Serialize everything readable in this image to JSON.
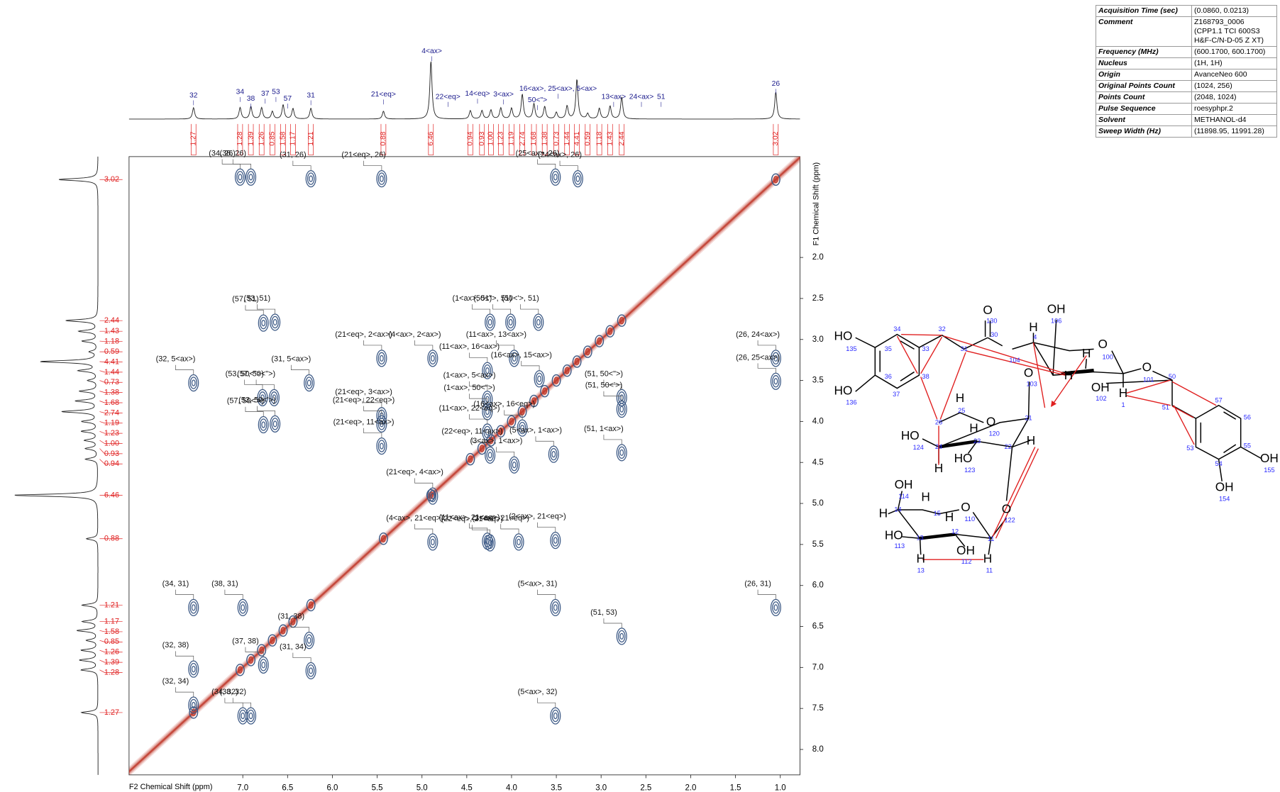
{
  "chart_data": {
    "type": "scatter",
    "x_label": "F2 Chemical Shift (ppm)",
    "y_label": "F1 Chemical Shift (ppm)",
    "xlim": [
      8.27,
      0.78
    ],
    "ylim": [
      0.77,
      8.31
    ],
    "xticks": [
      {
        "value": 7,
        "label": "7.0"
      },
      6.5,
      {
        "value": 6,
        "label": "6.0"
      },
      5.5,
      {
        "value": 5,
        "label": "5.0"
      },
      4.5,
      {
        "value": 4,
        "label": "4.0"
      },
      3.5,
      {
        "value": 3,
        "label": "3.0"
      },
      2.5,
      {
        "value": 2,
        "label": "2.0"
      },
      1.5,
      {
        "value": 1,
        "label": "1.0"
      }
    ],
    "yticks": [
      {
        "value": 2,
        "label": "2.0"
      },
      2.5,
      {
        "value": 3,
        "label": "3.0"
      },
      3.5,
      {
        "value": 4,
        "label": "4.0"
      },
      4.5,
      {
        "value": 5,
        "label": "5.0"
      },
      5.5,
      {
        "value": 6,
        "label": "6.0"
      },
      6.5,
      {
        "value": 7,
        "label": "7.0"
      },
      7.5,
      {
        "value": 8,
        "label": "8.0"
      }
    ],
    "colors": {
      "positive": "#3d5a86",
      "negative": "#c0392b",
      "label": "#1a1a8c",
      "integral": "#e02020"
    },
    "peaks": [
      {
        "label": "(34, 26)",
        "x": 7.03,
        "y": 1.02
      },
      {
        "label": "(38, 26)",
        "x": 6.91,
        "y": 1.02
      },
      {
        "label": "(31, 26)",
        "x": 6.24,
        "y": 1.04
      },
      {
        "label": "(21<eq>, 26)",
        "x": 5.45,
        "y": 1.04
      },
      {
        "label": "(25<ax>, 26)",
        "x": 3.51,
        "y": 1.02
      },
      {
        "label": "(24<ax>, 26)",
        "x": 3.26,
        "y": 1.04
      },
      {
        "label": "(53, 51)",
        "x": 6.64,
        "y": 2.79
      },
      {
        "label": "(57, 51)",
        "x": 6.77,
        "y": 2.8
      },
      {
        "label": "(1<ax>, 51)",
        "x": 4.24,
        "y": 2.79
      },
      {
        "label": "(50<\">, 51)",
        "x": 4.01,
        "y": 2.79
      },
      {
        "label": "(50<'>, 51)",
        "x": 3.7,
        "y": 2.79
      },
      {
        "label": "(32, 5<ax>)",
        "x": 7.55,
        "y": 3.53
      },
      {
        "label": "(31, 5<ax>)",
        "x": 6.26,
        "y": 3.53
      },
      {
        "label": "(57, 50<\">)",
        "x": 6.65,
        "y": 3.71
      },
      {
        "label": "(53, 50<\">)",
        "x": 6.78,
        "y": 3.71
      },
      {
        "label": "(53, 50<'>)",
        "x": 6.64,
        "y": 4.03
      },
      {
        "label": "(57, 50<'>)",
        "x": 6.77,
        "y": 4.04
      },
      {
        "label": "(21<eq>, 2<ax>)",
        "x": 5.45,
        "y": 3.23
      },
      {
        "label": "(21<eq>, 3<ax>)",
        "x": 5.45,
        "y": 3.93
      },
      {
        "label": "(21<eq>, 22<eq>)",
        "x": 5.45,
        "y": 4.03
      },
      {
        "label": "(21<eq>, 11<ax>)",
        "x": 5.45,
        "y": 4.3
      },
      {
        "label": "(4<ax>, 2<ax>)",
        "x": 4.88,
        "y": 3.23
      },
      {
        "label": "(11<ax>, 16<ax>)",
        "x": 4.27,
        "y": 3.38
      },
      {
        "label": "(11<ax>, 13<ax>)",
        "x": 3.97,
        "y": 3.23
      },
      {
        "label": "(16<ax>, 15<ax>)",
        "x": 3.69,
        "y": 3.48
      },
      {
        "label": "(1<ax>, 5<ax>)",
        "x": 4.27,
        "y": 3.73
      },
      {
        "label": "(1<ax>, 50<\">)",
        "x": 4.27,
        "y": 3.88
      },
      {
        "label": "(11<ax>, 22<eq>)",
        "x": 4.27,
        "y": 4.13
      },
      {
        "label": "(16<ax>, 16<eq>)",
        "x": 3.88,
        "y": 4.08
      },
      {
        "label": "(51, 50<\">)",
        "x": 2.77,
        "y": 3.71
      },
      {
        "label": "(51, 50<'>)",
        "x": 2.77,
        "y": 3.85
      },
      {
        "label": "(26, 24<ax>)",
        "x": 1.05,
        "y": 3.23
      },
      {
        "label": "(26, 25<ax>)",
        "x": 1.05,
        "y": 3.51
      },
      {
        "label": "(5<ax>, 1<ax>)",
        "x": 3.53,
        "y": 4.4
      },
      {
        "label": "(51, 1<ax>)",
        "x": 2.77,
        "y": 4.38
      },
      {
        "label": "(22<eq>, 11<ax>)",
        "x": 4.24,
        "y": 4.41
      },
      {
        "label": "(3<ax>, 1<ax>)",
        "x": 3.97,
        "y": 4.53
      },
      {
        "label": "(21<eq>, 4<ax>)",
        "x": 4.88,
        "y": 4.91
      },
      {
        "label": "(11<ax>, 21<eq>)",
        "x": 4.27,
        "y": 5.46
      },
      {
        "label": "(2<ax>, 21<eq>)",
        "x": 3.51,
        "y": 5.45
      },
      {
        "label": "(22<eq>, 21<eq>)",
        "x": 4.24,
        "y": 5.48
      },
      {
        "label": "(3<ax>, 21<eq>)",
        "x": 3.92,
        "y": 5.47
      },
      {
        "label": "(4<ax>, 21<eq>)",
        "x": 4.88,
        "y": 5.47
      },
      {
        "label": "(38, 31)",
        "x": 7.0,
        "y": 6.27
      },
      {
        "label": "(34, 31)",
        "x": 7.55,
        "y": 6.27
      },
      {
        "label": "(5<ax>, 31)",
        "x": 3.51,
        "y": 6.27
      },
      {
        "label": "(51, 53)",
        "x": 2.77,
        "y": 6.62
      },
      {
        "label": "(26, 31)",
        "x": 1.05,
        "y": 6.27
      },
      {
        "label": "(31, 38)",
        "x": 6.26,
        "y": 6.67
      },
      {
        "label": "(32, 38)",
        "x": 7.55,
        "y": 7.02
      },
      {
        "label": "(37, 38)",
        "x": 6.77,
        "y": 6.97
      },
      {
        "label": "(31, 34)",
        "x": 6.24,
        "y": 7.04
      },
      {
        "label": "(32, 34)",
        "x": 7.55,
        "y": 7.46
      },
      {
        "label": "(34, 32)",
        "x": 7.0,
        "y": 7.59
      },
      {
        "label": "(38, 32)",
        "x": 6.91,
        "y": 7.59
      },
      {
        "label": "(5<ax>, 32)",
        "x": 3.51,
        "y": 7.59
      }
    ],
    "top_labels": [
      {
        "label": "32",
        "ppm": 7.55
      },
      {
        "label": "34",
        "ppm": 7.03
      },
      {
        "label": "38",
        "ppm": 6.91
      },
      {
        "label": "37",
        "ppm": 6.75
      },
      {
        "label": "53",
        "ppm": 6.63
      },
      {
        "label": "57",
        "ppm": 6.5
      },
      {
        "label": "31",
        "ppm": 6.24
      },
      {
        "label": "21<eq>",
        "ppm": 5.43
      },
      {
        "label": "4<ax>",
        "ppm": 4.89
      },
      {
        "label": "22<eq>",
        "ppm": 4.71
      },
      {
        "label": "14<eq>",
        "ppm": 4.38
      },
      {
        "label": "3<ax>",
        "ppm": 4.09
      },
      {
        "label": "16<ax>, 25<ax>, 5<ax>",
        "ppm": 3.48
      },
      {
        "label": "50<\">",
        "ppm": 3.71
      },
      {
        "label": "13<ax>",
        "ppm": 2.86
      },
      {
        "label": "24<ax>",
        "ppm": 2.55
      },
      {
        "label": "51",
        "ppm": 2.33
      },
      {
        "label": "26",
        "ppm": 1.05
      }
    ],
    "integrals": [
      {
        "ppm": 7.55,
        "value": 1.27
      },
      {
        "ppm": 7.03,
        "value": 1.28
      },
      {
        "ppm": 6.91,
        "value": 1.39
      },
      {
        "ppm": 6.79,
        "value": 1.26
      },
      {
        "ppm": 6.67,
        "value": 0.85
      },
      {
        "ppm": 6.55,
        "value": 1.58
      },
      {
        "ppm": 6.44,
        "value": 1.17
      },
      {
        "ppm": 6.24,
        "value": 1.21
      },
      {
        "ppm": 5.43,
        "value": 0.88
      },
      {
        "ppm": 4.9,
        "value": 6.46
      },
      {
        "ppm": 4.46,
        "value": 0.94
      },
      {
        "ppm": 4.33,
        "value": 0.93
      },
      {
        "ppm": 4.23,
        "value": 1,
        "label": "1.00"
      },
      {
        "ppm": 4.12,
        "value": 1.23
      },
      {
        "ppm": 4.0,
        "value": 1.19
      },
      {
        "ppm": 3.88,
        "value": 2.74
      },
      {
        "ppm": 3.75,
        "value": 1.68
      },
      {
        "ppm": 3.63,
        "value": 1.38
      },
      {
        "ppm": 3.5,
        "value": 0.73
      },
      {
        "ppm": 3.38,
        "value": 1.44
      },
      {
        "ppm": 3.27,
        "value": 4.41
      },
      {
        "ppm": 3.15,
        "value": 0.59
      },
      {
        "ppm": 3.02,
        "value": 1.18
      },
      {
        "ppm": 2.9,
        "value": 1.43
      },
      {
        "ppm": 2.77,
        "value": 2.44
      },
      {
        "ppm": 1.05,
        "value": 3.02
      }
    ]
  },
  "parameters": {
    "rows": [
      [
        "Acquisition Time (sec)",
        "(0.0860, 0.0213)"
      ],
      [
        "Comment",
        "Z168793_0006 (CPP1.1 TCI 600S3 H&F-C/N-D-05 Z XT)"
      ],
      [
        "Frequency (MHz)",
        "(600.1700, 600.1700)"
      ],
      [
        "Nucleus",
        "(1H, 1H)"
      ],
      [
        "Origin",
        "AvanceNeo 600"
      ],
      [
        "Original Points Count",
        "(1024, 256)"
      ],
      [
        "Points Count",
        "(2048, 1024)"
      ],
      [
        "Pulse Sequence",
        "roesyphpr.2"
      ],
      [
        "Solvent",
        "METHANOL-d4"
      ],
      [
        "Sweep Width (Hz)",
        "(11898.95, 11991.28)"
      ]
    ]
  },
  "molecule": {
    "labels": [
      "HO",
      "135",
      "35",
      "34",
      "33",
      "38",
      "36",
      "37",
      "HO",
      "136",
      "32",
      "31",
      "O",
      "130",
      "30",
      "104",
      "H",
      "4",
      "OH",
      "106",
      "H",
      "O",
      "100",
      "H",
      "O",
      "103",
      "O",
      "101",
      "H",
      "1",
      "OH",
      "102",
      "50",
      "51",
      "57",
      "53",
      "54",
      "55",
      "56",
      "OH",
      "155",
      "OH",
      "154",
      "H",
      "25",
      "26",
      "O",
      "120",
      "21",
      "H",
      "23",
      "22",
      "H",
      "HO",
      "124",
      "24",
      "HO",
      "123",
      "H",
      "O",
      "122",
      "OH",
      "114",
      "H",
      "14",
      "15",
      "O",
      "110",
      "H",
      "HO",
      "113",
      "13",
      "H",
      "12",
      "11",
      "OH",
      "112",
      "H",
      "13",
      "H",
      "11"
    ]
  }
}
